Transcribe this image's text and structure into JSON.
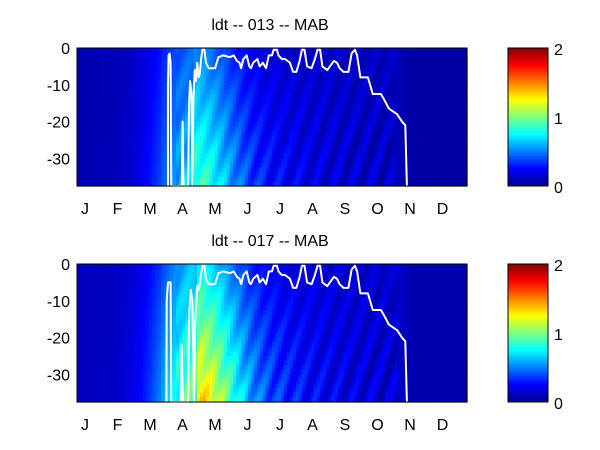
{
  "chart_data": [
    {
      "type": "heatmap",
      "title": "ldt -- 013 -- MAB",
      "xlabel": "",
      "ylabel": "",
      "x_tick_labels": [
        "J",
        "F",
        "M",
        "A",
        "M",
        "J",
        "J",
        "A",
        "S",
        "O",
        "N",
        "D"
      ],
      "x_range_months": [
        0,
        12
      ],
      "y_ticks": [
        0,
        -10,
        -20,
        -30
      ],
      "ylim": [
        -37.5,
        0
      ],
      "colorbar": {
        "colormap": "jet",
        "range": [
          0,
          2
        ],
        "ticks": [
          0,
          1,
          2
        ]
      },
      "field": {
        "base": 0.12,
        "spring_peak": 0.32,
        "spring_peak_month": 3.6,
        "spring_depth_gain": 0.22,
        "fall_decline_month": 9.8,
        "streak_amplitude": 0.06
      },
      "contour_line": {
        "color": "#ffffff",
        "points": [
          [
            2.8,
            -37.5
          ],
          [
            2.8,
            -10
          ],
          [
            2.82,
            -2
          ],
          [
            2.85,
            -1.5
          ],
          [
            2.88,
            -4
          ],
          [
            2.9,
            -37.5
          ],
          [
            3.22,
            -37.5
          ],
          [
            3.25,
            -20
          ],
          [
            3.28,
            -37.5
          ],
          [
            3.42,
            -37.5
          ],
          [
            3.45,
            -15
          ],
          [
            3.48,
            -9
          ],
          [
            3.52,
            -12
          ],
          [
            3.55,
            -37.5
          ],
          [
            3.58,
            -14
          ],
          [
            3.62,
            -6
          ],
          [
            3.66,
            -9
          ],
          [
            3.7,
            -4
          ],
          [
            3.74,
            -8
          ],
          [
            3.78,
            -7
          ],
          [
            3.82,
            -3
          ],
          [
            3.86,
            -0.5
          ],
          [
            3.92,
            -0.5
          ],
          [
            3.97,
            -4
          ],
          [
            4.05,
            -5.5
          ],
          [
            4.25,
            -5.5
          ],
          [
            4.35,
            -2.5
          ],
          [
            4.5,
            -2
          ],
          [
            4.7,
            -2.5
          ],
          [
            4.82,
            -2
          ],
          [
            4.92,
            -3.5
          ],
          [
            5.0,
            -4
          ],
          [
            5.05,
            -5.5
          ],
          [
            5.12,
            -3
          ],
          [
            5.22,
            -2
          ],
          [
            5.3,
            -5
          ],
          [
            5.35,
            -5.5
          ],
          [
            5.42,
            -4
          ],
          [
            5.55,
            -3
          ],
          [
            5.62,
            -5
          ],
          [
            5.72,
            -4
          ],
          [
            5.82,
            -5.5
          ],
          [
            5.9,
            -2
          ],
          [
            6.0,
            -2
          ],
          [
            6.05,
            -0.5
          ],
          [
            6.15,
            -0.5
          ],
          [
            6.2,
            -2
          ],
          [
            6.3,
            -3
          ],
          [
            6.4,
            -3
          ],
          [
            6.55,
            -4
          ],
          [
            6.65,
            -6.5
          ],
          [
            6.75,
            -6.5
          ],
          [
            6.85,
            -3.5
          ],
          [
            6.92,
            -0.5
          ],
          [
            7.0,
            -0.5
          ],
          [
            7.08,
            -5
          ],
          [
            7.22,
            -5.5
          ],
          [
            7.32,
            -3
          ],
          [
            7.4,
            -0.5
          ],
          [
            7.48,
            -0.5
          ],
          [
            7.55,
            -5
          ],
          [
            7.7,
            -6
          ],
          [
            7.9,
            -3.5
          ],
          [
            8.0,
            -4
          ],
          [
            8.08,
            -5.5
          ],
          [
            8.2,
            -6.5
          ],
          [
            8.35,
            -6.5
          ],
          [
            8.45,
            -1.5
          ],
          [
            8.55,
            -0.5
          ],
          [
            8.62,
            -2
          ],
          [
            8.72,
            -8
          ],
          [
            8.95,
            -8
          ],
          [
            9.1,
            -12.5
          ],
          [
            9.35,
            -12.5
          ],
          [
            9.45,
            -14
          ],
          [
            9.6,
            -16.5
          ],
          [
            9.85,
            -18
          ],
          [
            10.0,
            -20
          ],
          [
            10.1,
            -21
          ],
          [
            10.15,
            -37.5
          ]
        ]
      }
    },
    {
      "type": "heatmap",
      "title": "ldt -- 017 -- MAB",
      "xlabel": "",
      "ylabel": "",
      "x_tick_labels": [
        "J",
        "F",
        "M",
        "A",
        "M",
        "J",
        "J",
        "A",
        "S",
        "O",
        "N",
        "D"
      ],
      "x_range_months": [
        0,
        12
      ],
      "y_ticks": [
        0,
        -10,
        -20,
        -30
      ],
      "ylim": [
        -37.5,
        0
      ],
      "colorbar": {
        "colormap": "jet",
        "range": [
          0,
          2
        ],
        "ticks": [
          0,
          1,
          2
        ]
      },
      "field": {
        "base": 0.14,
        "spring_peak": 0.48,
        "spring_peak_month": 3.7,
        "spring_depth_gain": 0.38,
        "fall_decline_month": 9.9,
        "streak_amplitude": 0.07
      },
      "contour_line": {
        "color": "#ffffff",
        "points": [
          [
            2.75,
            -37.5
          ],
          [
            2.76,
            -10
          ],
          [
            2.8,
            -5
          ],
          [
            2.88,
            -5
          ],
          [
            2.9,
            -37.5
          ],
          [
            3.2,
            -37.5
          ],
          [
            3.22,
            -22
          ],
          [
            3.26,
            -37.5
          ],
          [
            3.42,
            -37.5
          ],
          [
            3.45,
            -14
          ],
          [
            3.5,
            -7
          ],
          [
            3.55,
            -10
          ],
          [
            3.6,
            -37.5
          ],
          [
            3.64,
            -15
          ],
          [
            3.7,
            -6
          ],
          [
            3.75,
            -7
          ],
          [
            3.82,
            -3
          ],
          [
            3.86,
            -0.5
          ],
          [
            3.92,
            -0.5
          ],
          [
            3.97,
            -4
          ],
          [
            4.05,
            -5.5
          ],
          [
            4.25,
            -5.5
          ],
          [
            4.35,
            -2.5
          ],
          [
            4.5,
            -2
          ],
          [
            4.7,
            -2.5
          ],
          [
            4.82,
            -2
          ],
          [
            4.92,
            -3.5
          ],
          [
            5.0,
            -4
          ],
          [
            5.05,
            -5.5
          ],
          [
            5.12,
            -3
          ],
          [
            5.22,
            -2
          ],
          [
            5.3,
            -5
          ],
          [
            5.35,
            -5.5
          ],
          [
            5.42,
            -4
          ],
          [
            5.55,
            -3
          ],
          [
            5.62,
            -5
          ],
          [
            5.72,
            -4
          ],
          [
            5.82,
            -5.5
          ],
          [
            5.9,
            -2
          ],
          [
            6.0,
            -2
          ],
          [
            6.05,
            -0.5
          ],
          [
            6.15,
            -0.5
          ],
          [
            6.2,
            -2
          ],
          [
            6.3,
            -3
          ],
          [
            6.4,
            -3
          ],
          [
            6.55,
            -4
          ],
          [
            6.65,
            -6.5
          ],
          [
            6.75,
            -6.5
          ],
          [
            6.85,
            -3.5
          ],
          [
            6.92,
            -0.5
          ],
          [
            7.0,
            -0.5
          ],
          [
            7.08,
            -5
          ],
          [
            7.22,
            -5.5
          ],
          [
            7.32,
            -3
          ],
          [
            7.4,
            -0.5
          ],
          [
            7.48,
            -0.5
          ],
          [
            7.55,
            -5
          ],
          [
            7.7,
            -6
          ],
          [
            7.9,
            -3.5
          ],
          [
            8.0,
            -4
          ],
          [
            8.08,
            -5.5
          ],
          [
            8.2,
            -6.5
          ],
          [
            8.35,
            -6.5
          ],
          [
            8.45,
            -1.5
          ],
          [
            8.55,
            -0.5
          ],
          [
            8.62,
            -2
          ],
          [
            8.72,
            -8
          ],
          [
            8.95,
            -8
          ],
          [
            9.1,
            -12.5
          ],
          [
            9.35,
            -12.5
          ],
          [
            9.45,
            -14
          ],
          [
            9.6,
            -16.5
          ],
          [
            9.85,
            -18
          ],
          [
            10.0,
            -20
          ],
          [
            10.1,
            -21
          ],
          [
            10.15,
            -37.5
          ]
        ]
      }
    }
  ]
}
